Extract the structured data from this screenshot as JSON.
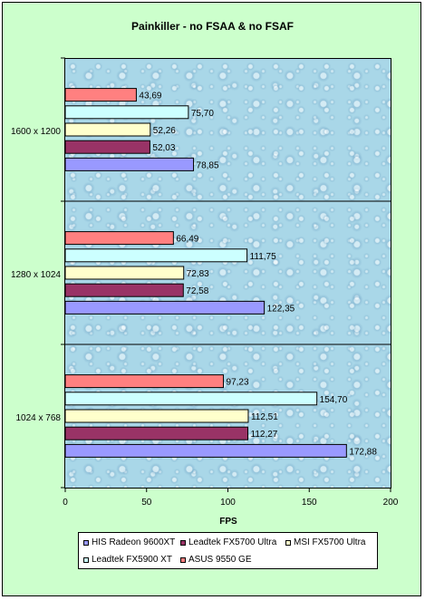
{
  "chart_data": {
    "type": "bar",
    "orientation": "horizontal",
    "title": "Painkiller - no FSAA & no FSAF",
    "xlabel": "FPS",
    "ylabel": "",
    "xlim": [
      0,
      200
    ],
    "xticks": [
      "0",
      "50",
      "100",
      "150",
      "200"
    ],
    "categories": [
      "1600 x 1200",
      "1280 x 1024",
      "1024 x 768"
    ],
    "series": [
      {
        "name": "HIS Radeon 9600XT",
        "color": "#9999ff",
        "values": [
          78.85,
          122.35,
          172.88
        ],
        "labels": [
          "78,85",
          "122,35",
          "172,88"
        ]
      },
      {
        "name": "Leadtek FX5700 Ultra",
        "color": "#993366",
        "values": [
          52.03,
          72.58,
          112.27
        ],
        "labels": [
          "52,03",
          "72,58",
          "112,27"
        ]
      },
      {
        "name": "MSI FX5700 Ultra",
        "color": "#ffffcc",
        "values": [
          52.26,
          72.83,
          112.51
        ],
        "labels": [
          "52,26",
          "72,83",
          "112,51"
        ]
      },
      {
        "name": "Leadtek FX5900 XT",
        "color": "#ccffff",
        "values": [
          75.7,
          111.75,
          154.7
        ],
        "labels": [
          "75,70",
          "111,75",
          "154,70"
        ]
      },
      {
        "name": "ASUS 9550 GE",
        "color": "#ff8080",
        "values": [
          43.69,
          66.49,
          97.23
        ],
        "labels": [
          "43,69",
          "66,49",
          "97,23"
        ]
      }
    ],
    "grid": false,
    "legend_position": "bottom"
  }
}
